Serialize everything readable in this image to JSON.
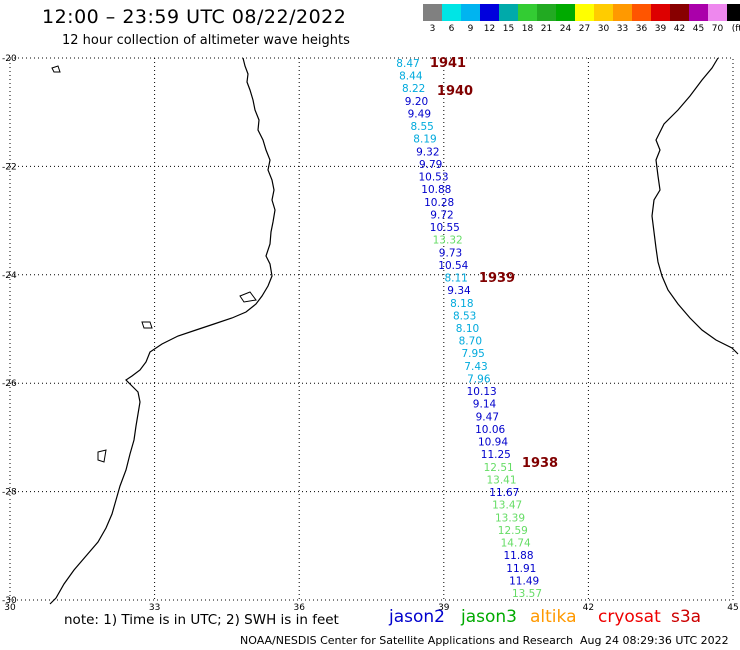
{
  "header": {
    "title": "12:00 – 23:59 UTC 08/22/2022",
    "subtitle": "12 hour collection of altimeter wave heights"
  },
  "color_scale": {
    "labels": [
      "3",
      "6",
      "9",
      "12",
      "15",
      "18",
      "21",
      "24",
      "27",
      "30",
      "33",
      "36",
      "39",
      "42",
      "45",
      "70",
      "(ft)"
    ],
    "colors": [
      "#808080",
      "#00e5e5",
      "#00b4f0",
      "#0000dd",
      "#00aaaa",
      "#33cc33",
      "#22aa22",
      "#00aa00",
      "#ffff00",
      "#ffcc00",
      "#ff9900",
      "#ff5500",
      "#dd0000",
      "#880000",
      "#aa00aa",
      "#ee88ee",
      "#000000"
    ]
  },
  "map": {
    "lat_labels": [
      "-20",
      "-22",
      "-24",
      "-26",
      "-28",
      "-30"
    ],
    "lon_labels": [
      "30",
      "33",
      "36",
      "39",
      "42",
      "45"
    ]
  },
  "track_labels": [
    {
      "text": "1941",
      "color": "#800000"
    },
    {
      "text": "1940",
      "color": "#800000"
    },
    {
      "text": "1939",
      "color": "#800000"
    },
    {
      "text": "1938",
      "color": "#800000"
    }
  ],
  "wave_heights": [
    {
      "value": "8.47",
      "color": "#00aadd"
    },
    {
      "value": "8.44",
      "color": "#00aadd"
    },
    {
      "value": "8.22",
      "color": "#00aadd"
    },
    {
      "value": "9.20",
      "color": "#0000cc"
    },
    {
      "value": "9.49",
      "color": "#0000cc"
    },
    {
      "value": "8.55",
      "color": "#00aadd"
    },
    {
      "value": "8.19",
      "color": "#00aadd"
    },
    {
      "value": "9.32",
      "color": "#0000cc"
    },
    {
      "value": "9.79",
      "color": "#0000cc"
    },
    {
      "value": "10.53",
      "color": "#0000cc"
    },
    {
      "value": "10.88",
      "color": "#0000cc"
    },
    {
      "value": "10.28",
      "color": "#0000cc"
    },
    {
      "value": "9.72",
      "color": "#0000cc"
    },
    {
      "value": "10.55",
      "color": "#0000cc"
    },
    {
      "value": "13.32",
      "color": "#66dd66"
    },
    {
      "value": "9.73",
      "color": "#0000cc"
    },
    {
      "value": "10.54",
      "color": "#0000cc"
    },
    {
      "value": "8.11",
      "color": "#00aadd"
    },
    {
      "value": "9.34",
      "color": "#0000cc"
    },
    {
      "value": "8.18",
      "color": "#00aadd"
    },
    {
      "value": "8.53",
      "color": "#00aadd"
    },
    {
      "value": "8.10",
      "color": "#00aadd"
    },
    {
      "value": "8.70",
      "color": "#00aadd"
    },
    {
      "value": "7.95",
      "color": "#00aadd"
    },
    {
      "value": "7.43",
      "color": "#00aadd"
    },
    {
      "value": "7.96",
      "color": "#00aadd"
    },
    {
      "value": "10.13",
      "color": "#0000cc"
    },
    {
      "value": "9.14",
      "color": "#0000cc"
    },
    {
      "value": "9.47",
      "color": "#0000cc"
    },
    {
      "value": "10.06",
      "color": "#0000cc"
    },
    {
      "value": "10.94",
      "color": "#0000cc"
    },
    {
      "value": "11.25",
      "color": "#0000cc"
    },
    {
      "value": "12.51",
      "color": "#66dd66"
    },
    {
      "value": "13.41",
      "color": "#66dd66"
    },
    {
      "value": "11.67",
      "color": "#0000cc"
    },
    {
      "value": "13.47",
      "color": "#66dd66"
    },
    {
      "value": "13.39",
      "color": "#66dd66"
    },
    {
      "value": "12.59",
      "color": "#66dd66"
    },
    {
      "value": "14.74",
      "color": "#66dd66"
    },
    {
      "value": "11.88",
      "color": "#0000cc"
    },
    {
      "value": "11.91",
      "color": "#0000cc"
    },
    {
      "value": "11.49",
      "color": "#0000cc"
    },
    {
      "value": "13.57",
      "color": "#66dd66"
    }
  ],
  "footer": {
    "note": "note:  1) Time is in UTC;  2) SWH is in feet",
    "satellites": [
      {
        "name": "jason2",
        "color": "#0000cc"
      },
      {
        "name": "jason3",
        "color": "#00aa00"
      },
      {
        "name": "altika",
        "color": "#ff9900"
      },
      {
        "name": "cryosat",
        "color": "#ee0000"
      },
      {
        "name": "s3a",
        "color": "#cc0000"
      }
    ],
    "credit": "NOAA/NESDIS Center for Satellite Applications and Research",
    "timestamp": "Aug 24 08:29:36 UTC 2022"
  }
}
